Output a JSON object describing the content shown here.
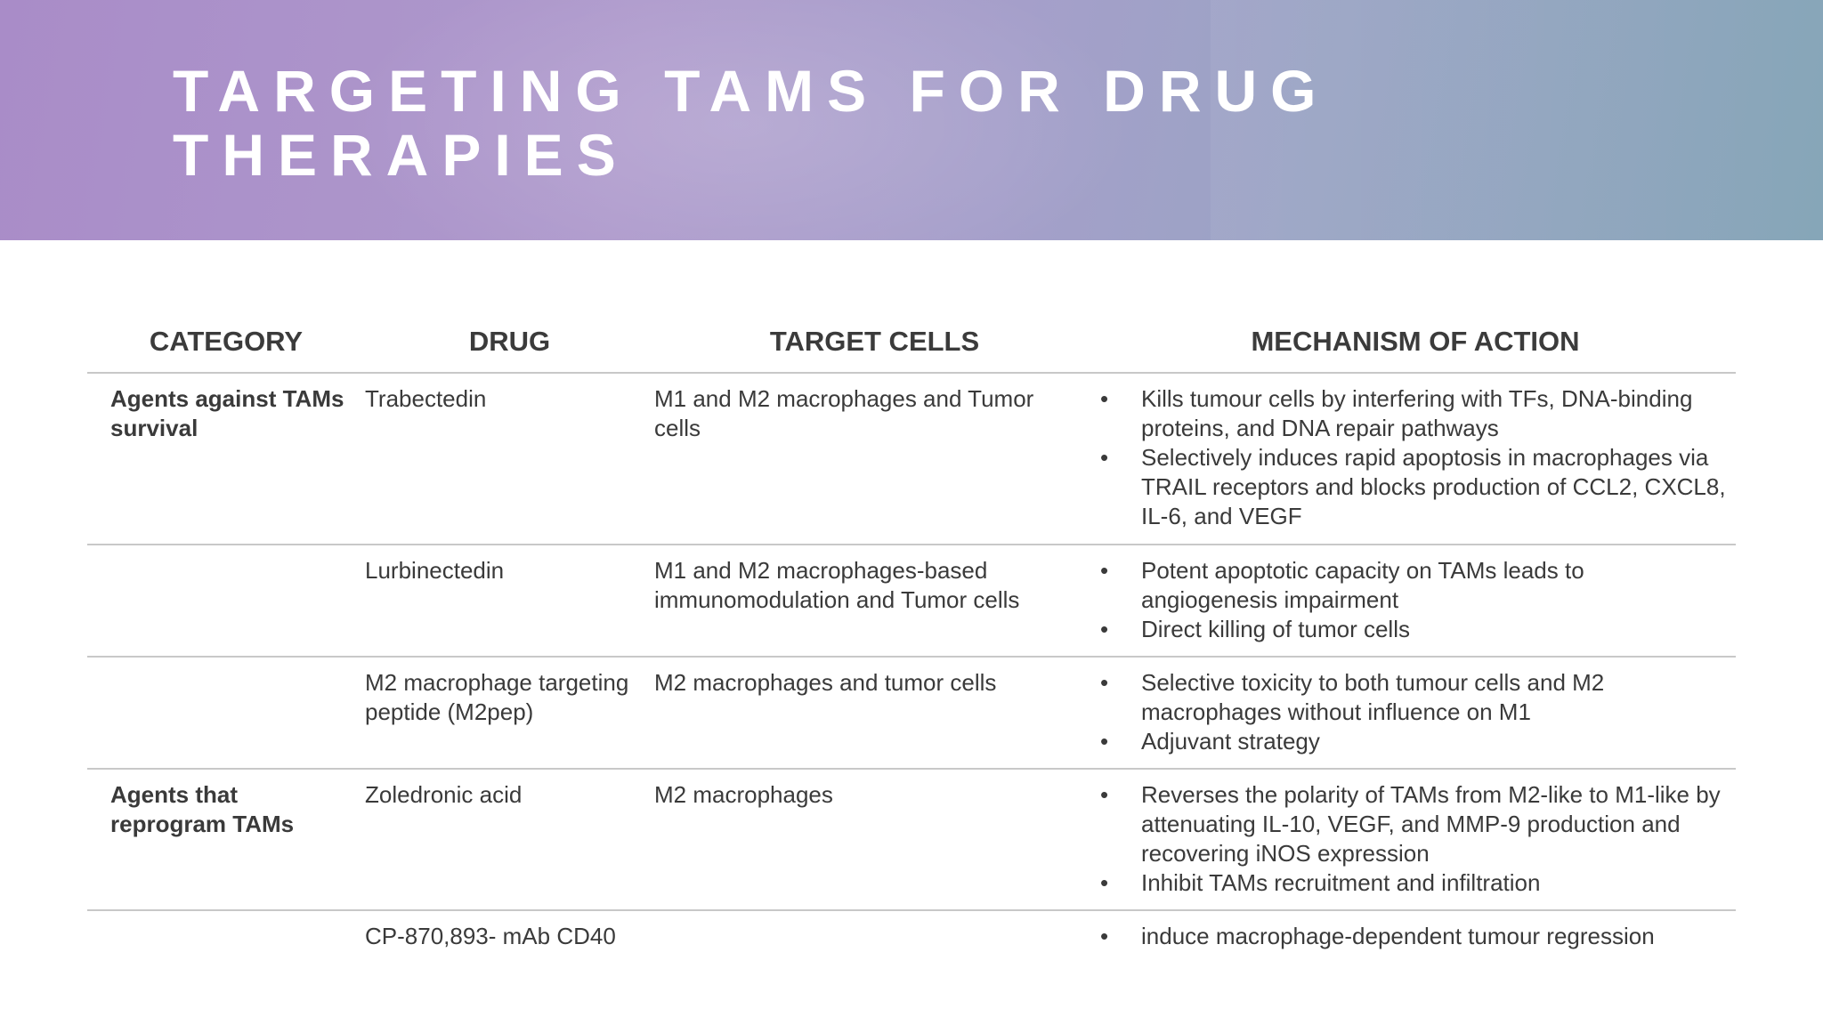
{
  "title": "TARGETING TAMS FOR DRUG THERAPIES",
  "headers": {
    "category": "CATEGORY",
    "drug": "DRUG",
    "target": "TARGET CELLS",
    "mechanism": "MECHANISM OF ACTION"
  },
  "rows": [
    {
      "category": "Agents against TAMs survival",
      "drug": "Trabectedin",
      "target": "M1 and M2 macrophages and Tumor cells",
      "mechanism": [
        "Kills tumour cells by interfering with TFs, DNA-binding proteins, and DNA repair pathways",
        "Selectively induces rapid apoptosis in macrophages via TRAIL receptors and blocks production of CCL2, CXCL8, IL-6, and VEGF"
      ]
    },
    {
      "category": "",
      "drug": "Lurbinectedin",
      "target": "M1 and M2 macrophages-based immunomodulation and Tumor cells",
      "mechanism": [
        "Potent apoptotic capacity on TAMs leads to angiogenesis impairment",
        "Direct killing of tumor cells"
      ]
    },
    {
      "category": "",
      "drug": "M2 macrophage targeting peptide (M2pep)",
      "target": "M2 macrophages and tumor cells",
      "mechanism": [
        "Selective toxicity to both tumour cells and M2 macrophages without influence on M1",
        "Adjuvant strategy"
      ]
    },
    {
      "category": "Agents that reprogram TAMs",
      "drug": "Zoledronic acid",
      "target": "M2 macrophages",
      "mechanism": [
        "Reverses the polarity of TAMs from M2-like to M1-like by attenuating IL-10, VEGF, and MMP-9 production and recovering iNOS expression",
        "Inhibit TAMs recruitment and infiltration"
      ]
    },
    {
      "category": "",
      "drug": "CP-870,893- mAb CD40",
      "target": "",
      "mechanism": [
        "induce macrophage-dependent tumour regression"
      ]
    }
  ]
}
